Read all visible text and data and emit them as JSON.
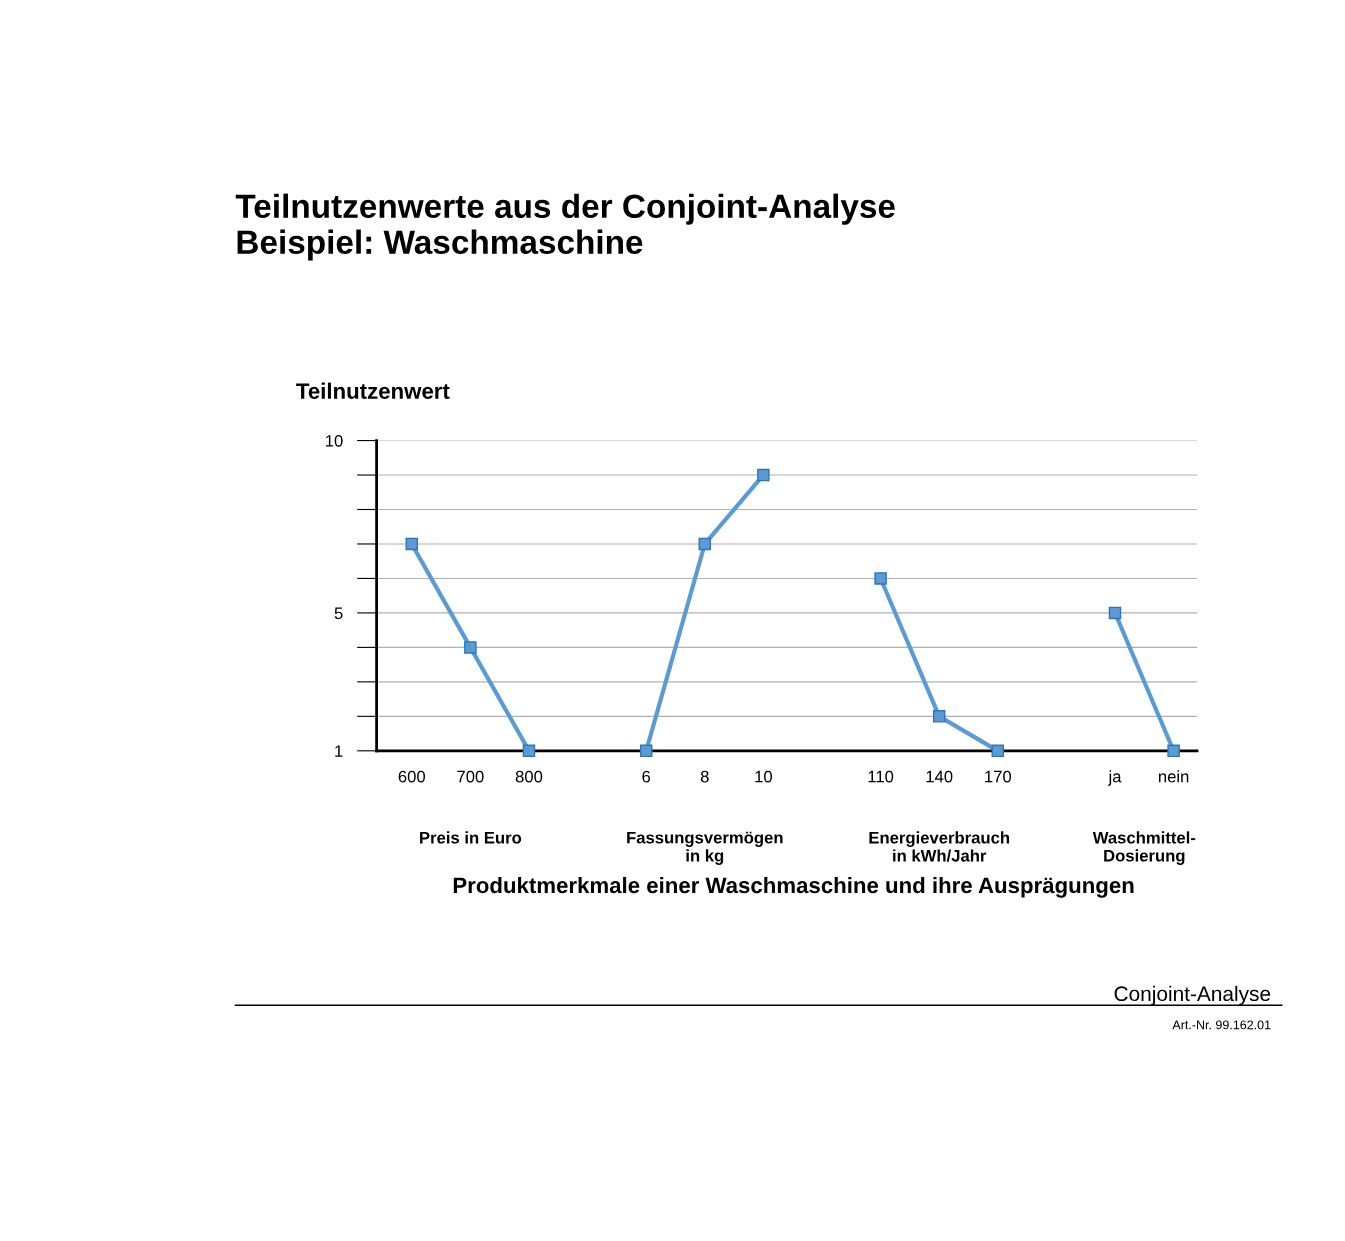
{
  "chart_data": {
    "type": "line",
    "title": "Teilnutzenwerte aus der Conjoint-Analyse\nBeispiel: Waschmaschine",
    "ylabel": "Teilnutzenwert",
    "xlabel": "Produktmerkmale einer Waschmaschine und ihre Ausprägungen",
    "categories": [
      "600",
      "700",
      "800",
      null,
      "6",
      "8",
      "10",
      null,
      "110",
      "140",
      "170",
      null,
      "ja",
      "nein"
    ],
    "series": [
      {
        "color": "#5b9bd5",
        "values": [
          7,
          4,
          1,
          null,
          null,
          null,
          null,
          null,
          null,
          null,
          null,
          null,
          null,
          null
        ]
      },
      {
        "color": "#5b9bd5",
        "values": [
          null,
          null,
          null,
          null,
          1,
          7,
          9,
          null,
          null,
          null,
          null,
          null,
          null,
          null
        ]
      },
      {
        "color": "#5b9bd5",
        "values": [
          null,
          null,
          null,
          null,
          null,
          null,
          null,
          null,
          6,
          2,
          1,
          null,
          null,
          null
        ]
      },
      {
        "color": "#5b9bd5",
        "values": [
          null,
          null,
          null,
          null,
          null,
          null,
          null,
          null,
          null,
          null,
          null,
          null,
          5,
          1
        ]
      }
    ],
    "annotations": [
      "Preis in Euro",
      "Fassungsvermögen\nin kg",
      "Energieverbrauch\nin kWh/Jahr",
      "Waschmittel-\nDosierung",
      "Conjoint-Analyse",
      "Art.-Nr. 99.162.01"
    ],
    "ylim": [
      1,
      10
    ],
    "yticks": [
      1,
      {
        "value": 2,
        "label": null
      },
      {
        "value": 3,
        "label": null
      },
      {
        "value": 4,
        "label": null
      },
      5,
      {
        "value": 6,
        "label": null
      },
      {
        "value": 7,
        "label": null
      },
      {
        "value": 8,
        "label": null
      },
      {
        "value": 9,
        "label": null
      },
      10
    ],
    "grid": "y",
    "marker": "square",
    "line_style": "solid"
  }
}
